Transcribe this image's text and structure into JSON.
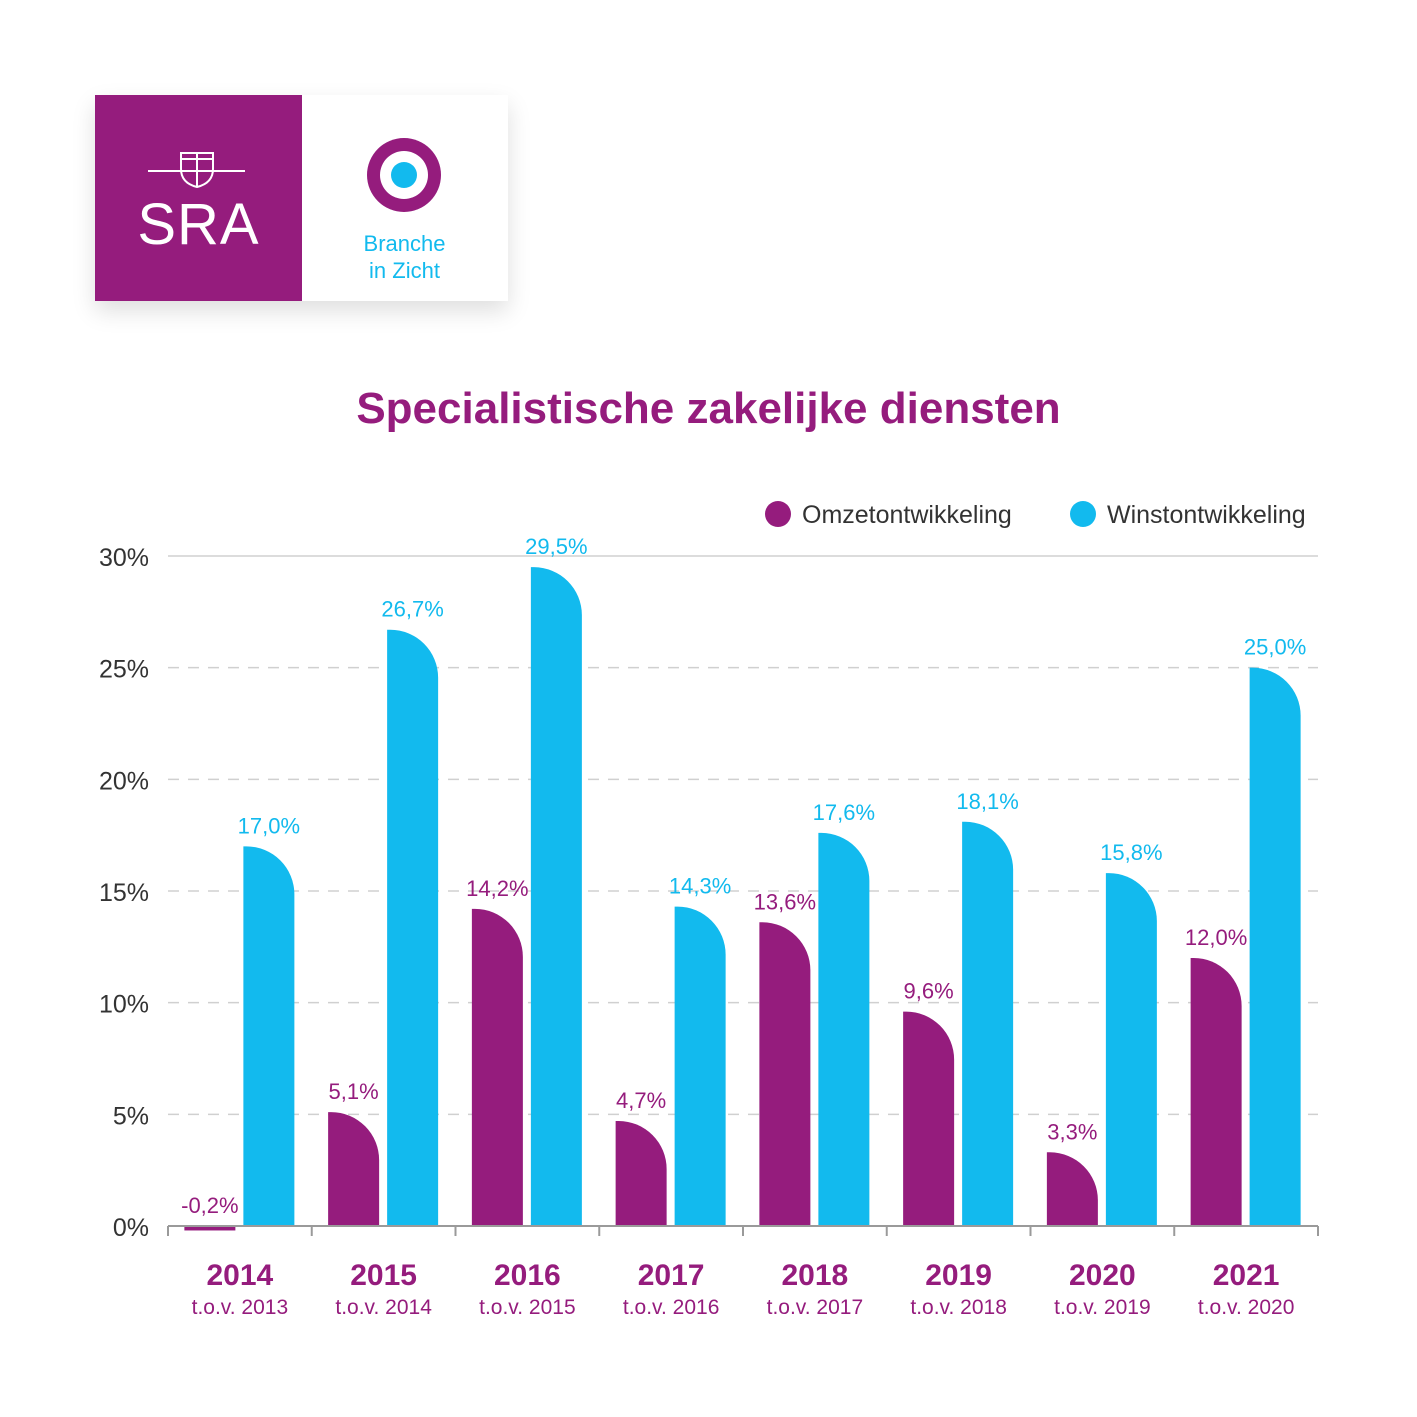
{
  "colors": {
    "purple": "#951c7d",
    "cyan": "#12baee",
    "axis_text": "#333333",
    "grid": "#d0d0d0"
  },
  "logo": {
    "sra_text": "SRA",
    "branche_line1": "Branche",
    "branche_line2": "in Zicht"
  },
  "chart_data": {
    "type": "bar",
    "title": "Specialistische zakelijke diensten",
    "categories": [
      "2014",
      "2015",
      "2016",
      "2017",
      "2018",
      "2019",
      "2020",
      "2021"
    ],
    "category_sublabels": [
      "t.o.v. 2013",
      "t.o.v. 2014",
      "t.o.v. 2015",
      "t.o.v. 2016",
      "t.o.v. 2017",
      "t.o.v. 2018",
      "t.o.v. 2019",
      "t.o.v. 2020"
    ],
    "series": [
      {
        "name": "Omzetontwikkeling",
        "color": "#951c7d",
        "values": [
          -0.2,
          5.1,
          14.2,
          4.7,
          13.6,
          9.6,
          3.3,
          12.0
        ],
        "labels": [
          "-0,2%",
          "5,1%",
          "14,2%",
          "4,7%",
          "13,6%",
          "9,6%",
          "3,3%",
          "12,0%"
        ]
      },
      {
        "name": "Winstontwikkeling",
        "color": "#12baee",
        "values": [
          17.0,
          26.7,
          29.5,
          14.3,
          17.6,
          18.1,
          15.8,
          25.0
        ],
        "labels": [
          "17,0%",
          "26,7%",
          "29,5%",
          "14,3%",
          "17,6%",
          "18,1%",
          "15,8%",
          "25,0%"
        ]
      }
    ],
    "ylim": [
      0,
      30
    ],
    "yticks": [
      0,
      5,
      10,
      15,
      20,
      25,
      30
    ],
    "ytick_labels": [
      "0%",
      "5%",
      "10%",
      "15%",
      "20%",
      "25%",
      "30%"
    ],
    "grid": true,
    "legend_position": "top-right"
  }
}
